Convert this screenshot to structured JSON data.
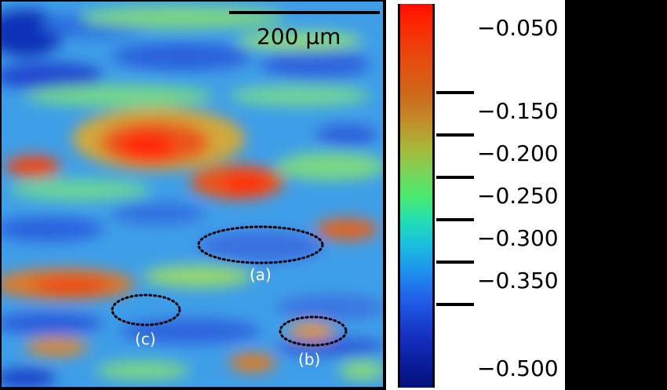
{
  "scale_bar": {
    "label": "200 μm"
  },
  "regions": [
    {
      "label": "(a)"
    },
    {
      "label": "(b)"
    },
    {
      "label": "(c)"
    }
  ],
  "colorbar": {
    "ticks": [
      "−0.050",
      "−0.150",
      "−0.200",
      "−0.250",
      "−0.300",
      "−0.350",
      "−0.500"
    ],
    "colors": [
      "#ff0b00",
      "#cc6a1c",
      "#4bea6e",
      "#1f8ef0",
      "#04127a"
    ]
  }
}
